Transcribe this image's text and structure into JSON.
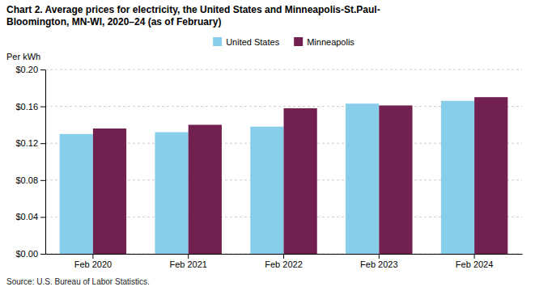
{
  "chart_data": {
    "type": "bar",
    "title": "Chart 2. Average prices for electricity, the United States and Minneapolis-St.Paul-\nBloomington, MN-WI, 2020–24 (as of February)",
    "ylabel": "Per kWh",
    "annotations": [
      "Source: U.S. Bureau of Labor Statistics."
    ],
    "categories": [
      "Feb 2020",
      "Feb 2021",
      "Feb 2022",
      "Feb 2023",
      "Feb 2024"
    ],
    "series": [
      {
        "name": "United States",
        "color": "#87CEEB",
        "values": [
          0.13,
          0.132,
          0.138,
          0.163,
          0.166
        ]
      },
      {
        "name": "Minneapolis",
        "color": "#722050",
        "values": [
          0.136,
          0.14,
          0.158,
          0.161,
          0.17
        ]
      }
    ],
    "ylim": [
      0.0,
      0.2
    ],
    "yticks": [
      {
        "value": 0.0,
        "label": "$0.00"
      },
      {
        "value": 0.04,
        "label": "$0.04"
      },
      {
        "value": 0.08,
        "label": "$0.08"
      },
      {
        "value": 0.12,
        "label": "$0.12"
      },
      {
        "value": 0.16,
        "label": "$0.16"
      },
      {
        "value": 0.2,
        "label": "$0.20"
      }
    ],
    "grid": true,
    "legend": "top"
  }
}
